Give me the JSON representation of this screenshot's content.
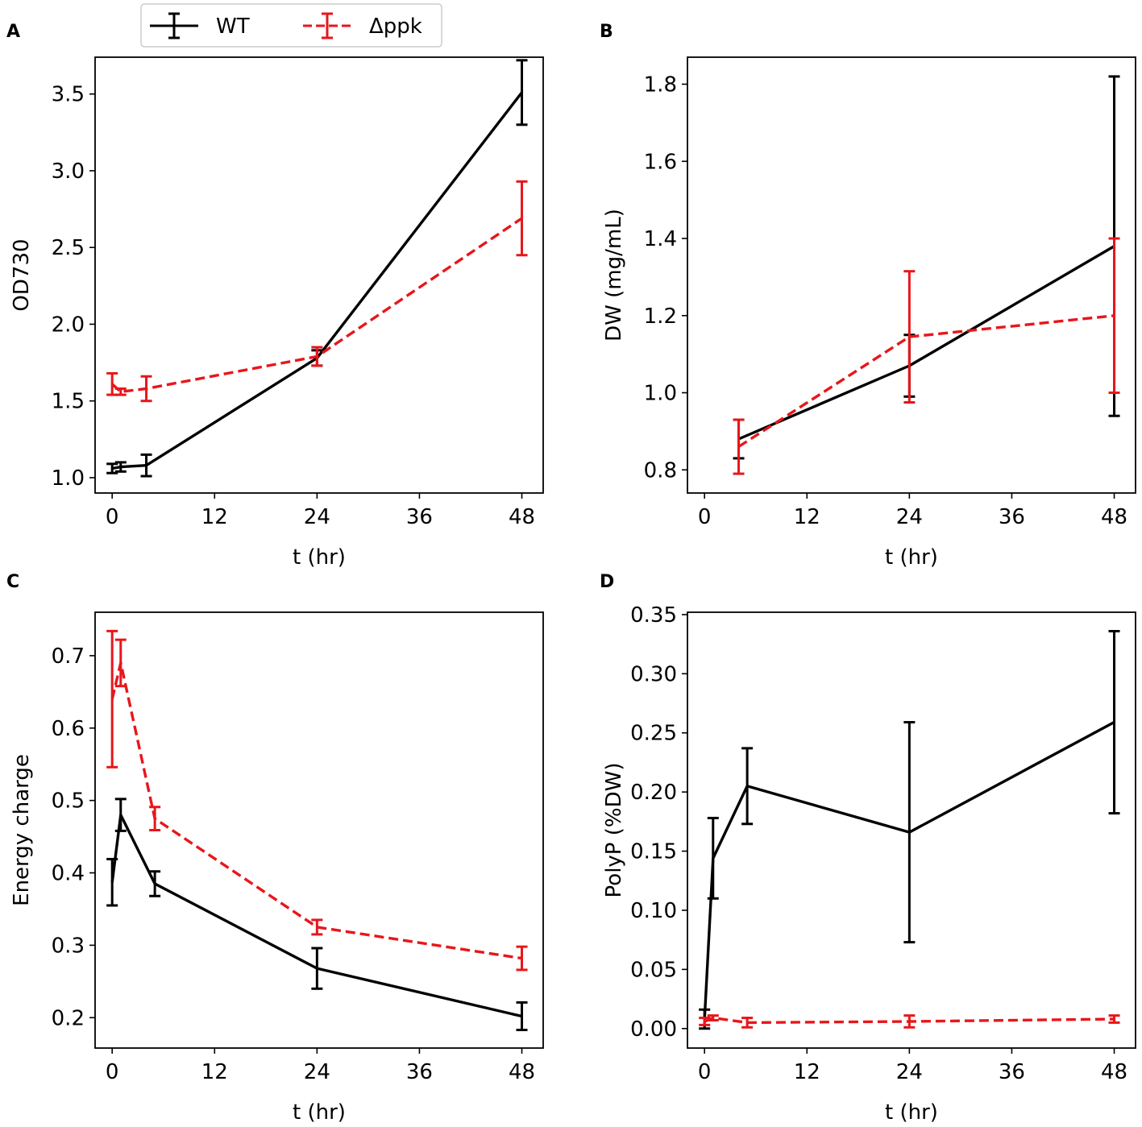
{
  "figure": {
    "legend": [
      {
        "label": "WT",
        "color": "#000000",
        "dashed": false
      },
      {
        "label": "Δppk",
        "color": "#e8161b",
        "dashed": true
      }
    ]
  },
  "chart_data": [
    {
      "type": "line",
      "panel": "A",
      "xlabel": "t (hr)",
      "ylabel": "OD730",
      "xlim": [
        -2,
        50.5
      ],
      "ylim": [
        0.9,
        3.74
      ],
      "xticks": [
        0,
        12,
        24,
        36,
        48
      ],
      "yticks": [
        1.0,
        1.5,
        2.0,
        2.5,
        3.0,
        3.5
      ],
      "ytick_decimals": 1,
      "series": [
        {
          "name": "WT",
          "x": [
            0,
            1,
            4,
            24,
            48
          ],
          "y": [
            1.06,
            1.07,
            1.08,
            1.78,
            3.51
          ],
          "err": [
            0.03,
            0.03,
            0.07,
            0.05,
            0.21
          ]
        },
        {
          "name": "Δppk",
          "x": [
            0,
            1,
            4,
            24,
            48
          ],
          "y": [
            1.61,
            1.56,
            1.58,
            1.79,
            2.69
          ],
          "err": [
            0.07,
            0.02,
            0.08,
            0.06,
            0.24
          ]
        }
      ]
    },
    {
      "type": "line",
      "panel": "B",
      "xlabel": "t (hr)",
      "ylabel": "DW (mg/mL)",
      "xlim": [
        -2,
        50.5
      ],
      "ylim": [
        0.74,
        1.87
      ],
      "xticks": [
        0,
        12,
        24,
        36,
        48
      ],
      "yticks": [
        0.8,
        1.0,
        1.2,
        1.4,
        1.6,
        1.8
      ],
      "ytick_decimals": 1,
      "series": [
        {
          "name": "WT",
          "x": [
            4,
            24,
            48
          ],
          "y": [
            0.88,
            1.07,
            1.38
          ],
          "err": [
            0.05,
            0.08,
            0.44
          ]
        },
        {
          "name": "Δppk",
          "x": [
            4,
            24,
            48
          ],
          "y": [
            0.86,
            1.145,
            1.2
          ],
          "err": [
            0.07,
            0.17,
            0.2
          ]
        }
      ]
    },
    {
      "type": "line",
      "panel": "C",
      "xlabel": "t (hr)",
      "ylabel": "Energy charge",
      "xlim": [
        -2,
        50.5
      ],
      "ylim": [
        0.158,
        0.76
      ],
      "xticks": [
        0,
        12,
        24,
        36,
        48
      ],
      "yticks": [
        0.2,
        0.3,
        0.4,
        0.5,
        0.6,
        0.7
      ],
      "ytick_decimals": 1,
      "series": [
        {
          "name": "WT",
          "x": [
            0,
            1,
            5,
            24,
            48
          ],
          "y": [
            0.387,
            0.48,
            0.385,
            0.268,
            0.202
          ],
          "err": [
            0.032,
            0.022,
            0.017,
            0.028,
            0.019
          ]
        },
        {
          "name": "Δppk",
          "x": [
            0,
            1,
            5,
            24,
            48
          ],
          "y": [
            0.64,
            0.69,
            0.475,
            0.325,
            0.282
          ],
          "err": [
            0.094,
            0.032,
            0.016,
            0.01,
            0.016
          ]
        }
      ]
    },
    {
      "type": "line",
      "panel": "D",
      "xlabel": "t (hr)",
      "ylabel": "PolyP (%DW)",
      "xlim": [
        -2,
        50.5
      ],
      "ylim": [
        -0.0165,
        0.352
      ],
      "xticks": [
        0,
        12,
        24,
        36,
        48
      ],
      "yticks": [
        0.0,
        0.05,
        0.1,
        0.15,
        0.2,
        0.25,
        0.3,
        0.35
      ],
      "ytick_decimals": 2,
      "series": [
        {
          "name": "WT",
          "x": [
            0,
            1,
            5,
            24,
            48
          ],
          "y": [
            0.008,
            0.144,
            0.205,
            0.166,
            0.259
          ],
          "err": [
            0.008,
            0.034,
            0.032,
            0.093,
            0.077
          ]
        },
        {
          "name": "Δppk",
          "x": [
            0,
            1,
            5,
            24,
            48
          ],
          "y": [
            0.006,
            0.009,
            0.005,
            0.006,
            0.008
          ],
          "err": [
            0.003,
            0.002,
            0.004,
            0.005,
            0.003
          ]
        }
      ]
    }
  ]
}
